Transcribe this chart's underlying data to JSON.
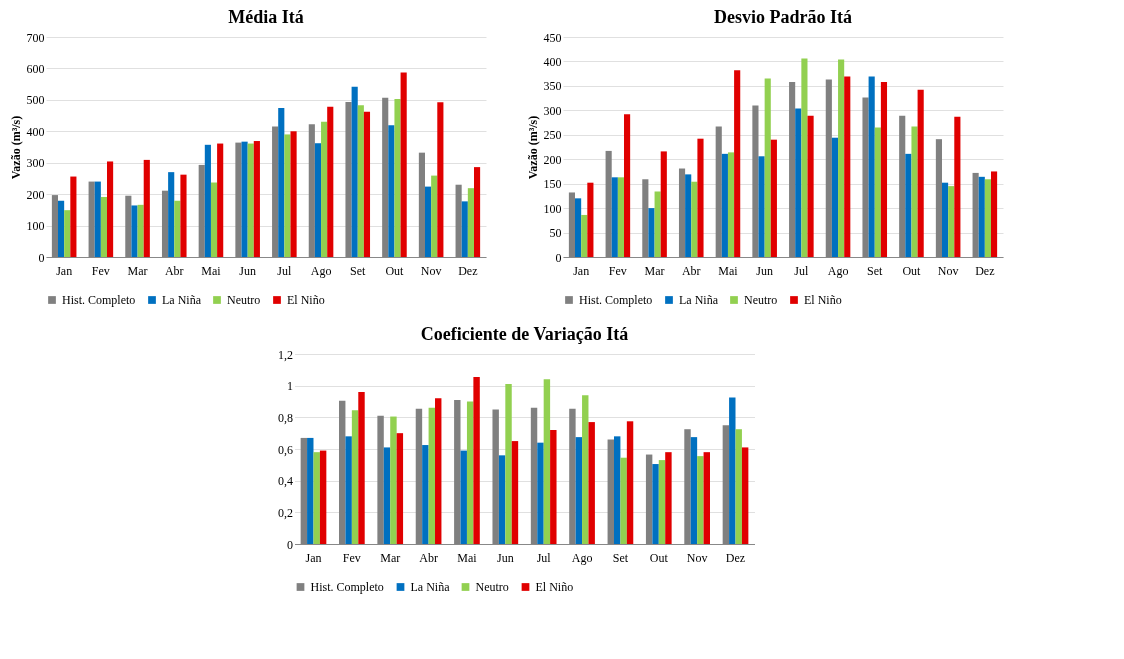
{
  "chart_data": [
    {
      "type": "bar",
      "title": "Média Itá",
      "ylabel": "Vazão (m³/s)",
      "categories": [
        "Jan",
        "Fev",
        "Mar",
        "Abr",
        "Mai",
        "Jun",
        "Jul",
        "Ago",
        "Set",
        "Out",
        "Nov",
        "Dez"
      ],
      "ylim": [
        0,
        700
      ],
      "yticks": [
        0,
        100,
        200,
        300,
        400,
        500,
        600,
        700
      ],
      "grid": "y",
      "legend": "bottom",
      "series": [
        {
          "name": "Hist. Completo",
          "color": "#808080",
          "values": [
            197,
            240,
            195,
            211,
            293,
            364,
            415,
            422,
            493,
            507,
            332,
            230
          ]
        },
        {
          "name": "La Niña",
          "color": "#0070c0",
          "values": [
            179,
            240,
            164,
            270,
            357,
            367,
            474,
            362,
            542,
            419,
            224,
            177
          ]
        },
        {
          "name": "Neutro",
          "color": "#92d050",
          "values": [
            149,
            191,
            166,
            179,
            237,
            361,
            390,
            430,
            483,
            503,
            259,
            219
          ]
        },
        {
          "name": "El Niño",
          "color": "#e00000",
          "values": [
            256,
            304,
            309,
            262,
            361,
            369,
            400,
            478,
            462,
            587,
            492,
            286
          ]
        }
      ]
    },
    {
      "type": "bar",
      "title": "Desvio Padrão Itá",
      "ylabel": "Vazão (m³/s)",
      "categories": [
        "Jan",
        "Fev",
        "Mar",
        "Abr",
        "Mai",
        "Jun",
        "Jul",
        "Ago",
        "Set",
        "Out",
        "Nov",
        "Dez"
      ],
      "ylim": [
        0,
        450
      ],
      "yticks": [
        0,
        50,
        100,
        150,
        200,
        250,
        300,
        350,
        400,
        450
      ],
      "grid": "y",
      "legend": "bottom",
      "series": [
        {
          "name": "Hist. Completo",
          "color": "#808080",
          "values": [
            132,
            217,
            159,
            181,
            267,
            310,
            358,
            363,
            326,
            289,
            241,
            172
          ]
        },
        {
          "name": "La Niña",
          "color": "#0070c0",
          "values": [
            120,
            163,
            100,
            169,
            211,
            206,
            304,
            244,
            369,
            211,
            152,
            164
          ]
        },
        {
          "name": "Neutro",
          "color": "#92d050",
          "values": [
            86,
            163,
            134,
            154,
            214,
            365,
            406,
            404,
            265,
            267,
            145,
            159
          ]
        },
        {
          "name": "El Niño",
          "color": "#e00000",
          "values": [
            152,
            292,
            216,
            242,
            382,
            240,
            289,
            369,
            358,
            342,
            287,
            175
          ]
        }
      ]
    },
    {
      "type": "bar",
      "title": "Coeficiente de Variação Itá",
      "categories": [
        "Jan",
        "Fev",
        "Mar",
        "Abr",
        "Mai",
        "Jun",
        "Jul",
        "Ago",
        "Set",
        "Out",
        "Nov",
        "Dez"
      ],
      "ylim": [
        0,
        1.2
      ],
      "yticks": [
        0,
        {
          "value": 0.2,
          "label": "0,2"
        },
        {
          "value": 0.4,
          "label": "0,4"
        },
        {
          "value": 0.6,
          "label": "0,6"
        },
        {
          "value": 0.8,
          "label": "0,8"
        },
        1,
        {
          "value": 1.2,
          "label": "1,2"
        }
      ],
      "grid": "y",
      "legend": "bottom",
      "series": [
        {
          "name": "Hist. Completo",
          "color": "#808080",
          "values": [
            0.67,
            0.905,
            0.81,
            0.855,
            0.91,
            0.85,
            0.86,
            0.855,
            0.66,
            0.565,
            0.725,
            0.75
          ]
        },
        {
          "name": "La Niña",
          "color": "#0070c0",
          "values": [
            0.67,
            0.68,
            0.61,
            0.625,
            0.59,
            0.56,
            0.64,
            0.675,
            0.68,
            0.505,
            0.675,
            0.925
          ]
        },
        {
          "name": "Neutro",
          "color": "#92d050",
          "values": [
            0.58,
            0.845,
            0.805,
            0.86,
            0.9,
            1.01,
            1.04,
            0.94,
            0.545,
            0.53,
            0.555,
            0.725
          ]
        },
        {
          "name": "El Niño",
          "color": "#e00000",
          "values": [
            0.59,
            0.96,
            0.7,
            0.92,
            1.055,
            0.65,
            0.72,
            0.77,
            0.775,
            0.58,
            0.58,
            0.61
          ]
        }
      ]
    }
  ]
}
